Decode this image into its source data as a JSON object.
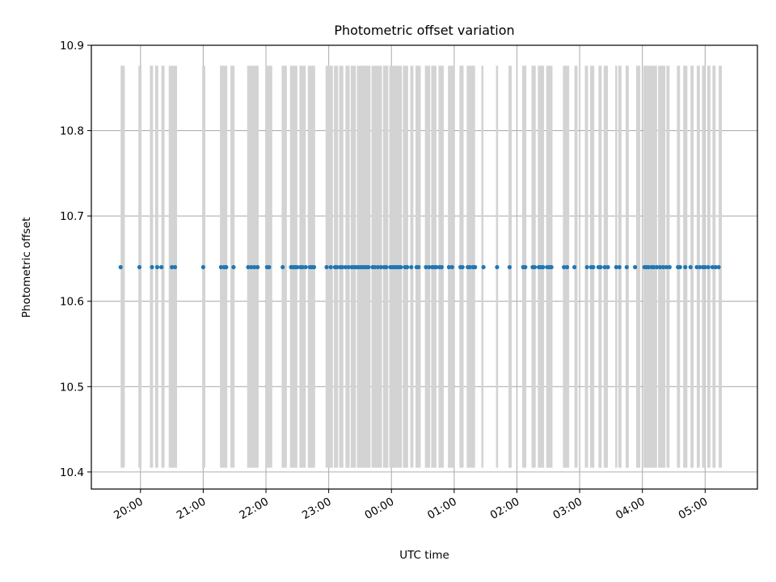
{
  "chart_data": {
    "type": "scatter",
    "title": "Photometric offset variation",
    "xlabel": "UTC time",
    "ylabel": "Photometric offset",
    "x_axis": {
      "kind": "time",
      "range": [
        "19:13",
        "05:50"
      ],
      "ticks": [
        "20:00",
        "21:00",
        "22:00",
        "23:00",
        "00:00",
        "01:00",
        "02:00",
        "03:00",
        "04:00",
        "05:00"
      ]
    },
    "y_axis": {
      "range": [
        10.38,
        10.9
      ],
      "ticks": [
        "10.4",
        "10.5",
        "10.6",
        "10.7",
        "10.8",
        "10.9"
      ]
    },
    "grid": true,
    "legend": "none",
    "point_color": "#1f77b4",
    "band_color": "#d3d3d3",
    "band_range": [
      10.405,
      10.876
    ],
    "shaded_intervals": [
      [
        "19:41",
        "19:45"
      ],
      [
        "19:58",
        "20:01"
      ],
      [
        "20:09",
        "20:12"
      ],
      [
        "20:14",
        "20:17"
      ],
      [
        "20:20",
        "20:23"
      ],
      [
        "20:27",
        "20:35"
      ],
      [
        "20:59",
        "21:02"
      ],
      [
        "21:16",
        "21:23"
      ],
      [
        "21:26",
        "21:30"
      ],
      [
        "21:42",
        "21:53"
      ],
      [
        "22:00",
        "22:06"
      ],
      [
        "22:15",
        "22:20"
      ],
      [
        "22:23",
        "22:30"
      ],
      [
        "22:32",
        "22:38"
      ],
      [
        "22:40",
        "22:47"
      ],
      [
        "22:57",
        "23:04"
      ],
      [
        "23:05",
        "23:09"
      ],
      [
        "23:10",
        "23:14"
      ],
      [
        "23:16",
        "23:20"
      ],
      [
        "23:21",
        "23:26"
      ],
      [
        "23:27",
        "23:40"
      ],
      [
        "23:41",
        "23:51"
      ],
      [
        "23:52",
        "23:57"
      ],
      [
        "23:58",
        "24:10"
      ],
      [
        "24:11",
        "24:16"
      ],
      [
        "24:18",
        "24:21"
      ],
      [
        "24:23",
        "24:28"
      ],
      [
        "24:32",
        "24:37"
      ],
      [
        "24:38",
        "24:43"
      ],
      [
        "24:45",
        "24:50"
      ],
      [
        "24:54",
        "25:00"
      ],
      [
        "25:05",
        "25:09"
      ],
      [
        "25:12",
        "25:20"
      ],
      [
        "25:26",
        "25:28"
      ],
      [
        "25:40",
        "25:42"
      ],
      [
        "25:52",
        "25:55"
      ],
      [
        "26:05",
        "26:09"
      ],
      [
        "26:14",
        "26:18"
      ],
      [
        "26:20",
        "26:26"
      ],
      [
        "26:28",
        "26:34"
      ],
      [
        "26:44",
        "26:50"
      ],
      [
        "26:55",
        "26:58"
      ],
      [
        "27:05",
        "27:08"
      ],
      [
        "27:10",
        "27:14"
      ],
      [
        "27:18",
        "27:21"
      ],
      [
        "27:23",
        "27:27"
      ],
      [
        "27:34",
        "27:36"
      ],
      [
        "27:37",
        "27:40"
      ],
      [
        "27:44",
        "27:47"
      ],
      [
        "27:54",
        "27:58"
      ],
      [
        "28:01",
        "28:14"
      ],
      [
        "28:15",
        "28:22"
      ],
      [
        "28:23",
        "28:26"
      ],
      [
        "28:33",
        "28:36"
      ],
      [
        "28:39",
        "28:43"
      ],
      [
        "28:46",
        "28:49"
      ],
      [
        "28:52",
        "28:55"
      ],
      [
        "28:57",
        "29:00"
      ],
      [
        "29:02",
        "29:05"
      ],
      [
        "29:07",
        "29:10"
      ],
      [
        "29:13",
        "29:16"
      ]
    ],
    "series": [
      {
        "offset": 10.64,
        "times": [
          "19:41",
          "19:59",
          "20:11",
          "20:16",
          "20:20",
          "20:30",
          "20:33",
          "21:00",
          "21:17",
          "21:20",
          "21:22",
          "21:29",
          "21:43",
          "21:46",
          "21:49",
          "21:52",
          "22:01",
          "22:03",
          "22:16",
          "22:24",
          "22:26",
          "22:28",
          "22:30",
          "22:33",
          "22:35",
          "22:38",
          "22:42",
          "22:44",
          "22:46",
          "22:58",
          "23:02",
          "23:06",
          "23:08",
          "23:11",
          "23:13",
          "23:16",
          "23:19",
          "23:22",
          "23:24",
          "23:26",
          "23:28",
          "23:30",
          "23:32",
          "23:34",
          "23:36",
          "23:38",
          "23:42",
          "23:44",
          "23:47",
          "23:50",
          "23:53",
          "23:55",
          "23:59",
          "24:01",
          "24:03",
          "24:05",
          "24:07",
          "24:09",
          "24:13",
          "24:15",
          "24:19",
          "24:24",
          "24:26",
          "24:33",
          "24:36",
          "24:39",
          "24:41",
          "24:43",
          "24:46",
          "24:48",
          "24:55",
          "24:58",
          "25:06",
          "25:08",
          "25:13",
          "25:15",
          "25:18",
          "25:20",
          "25:28",
          "25:41",
          "25:53",
          "26:06",
          "26:08",
          "26:15",
          "26:17",
          "26:21",
          "26:23",
          "26:25",
          "26:29",
          "26:31",
          "26:33",
          "26:45",
          "26:48",
          "26:55",
          "27:07",
          "27:11",
          "27:13",
          "27:18",
          "27:20",
          "27:24",
          "27:27",
          "27:35",
          "27:38",
          "27:45",
          "27:53",
          "28:02",
          "28:04",
          "28:06",
          "28:09",
          "28:11",
          "28:14",
          "28:17",
          "28:20",
          "28:23",
          "28:26",
          "28:34",
          "28:36",
          "28:41",
          "28:46",
          "28:52",
          "28:55",
          "28:58",
          "29:00",
          "29:03",
          "29:07",
          "29:10",
          "29:13"
        ]
      }
    ]
  }
}
